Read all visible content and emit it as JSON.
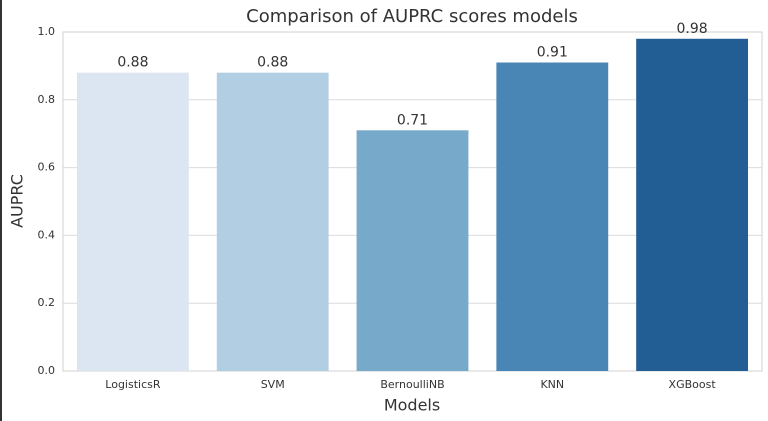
{
  "chart_data": {
    "type": "bar",
    "title": "Comparison of AUPRC scores models",
    "x_label": "Models",
    "y_label": "AUPRC",
    "categories": [
      "LogisticsR",
      "SVM",
      "BernoulliNB",
      "KNN",
      "XGBoost"
    ],
    "values": [
      0.88,
      0.88,
      0.71,
      0.91,
      0.98
    ],
    "colors": [
      "#dbe6f2",
      "#b2cee3",
      "#77a9cb",
      "#4986b6",
      "#225d94"
    ],
    "ylim": [
      0,
      1
    ],
    "yticks": [
      {
        "value": 0,
        "label": "0.0"
      },
      0.2,
      0.4,
      0.6,
      0.8,
      {
        "value": 1,
        "label": "1.0"
      }
    ],
    "grid": true
  }
}
